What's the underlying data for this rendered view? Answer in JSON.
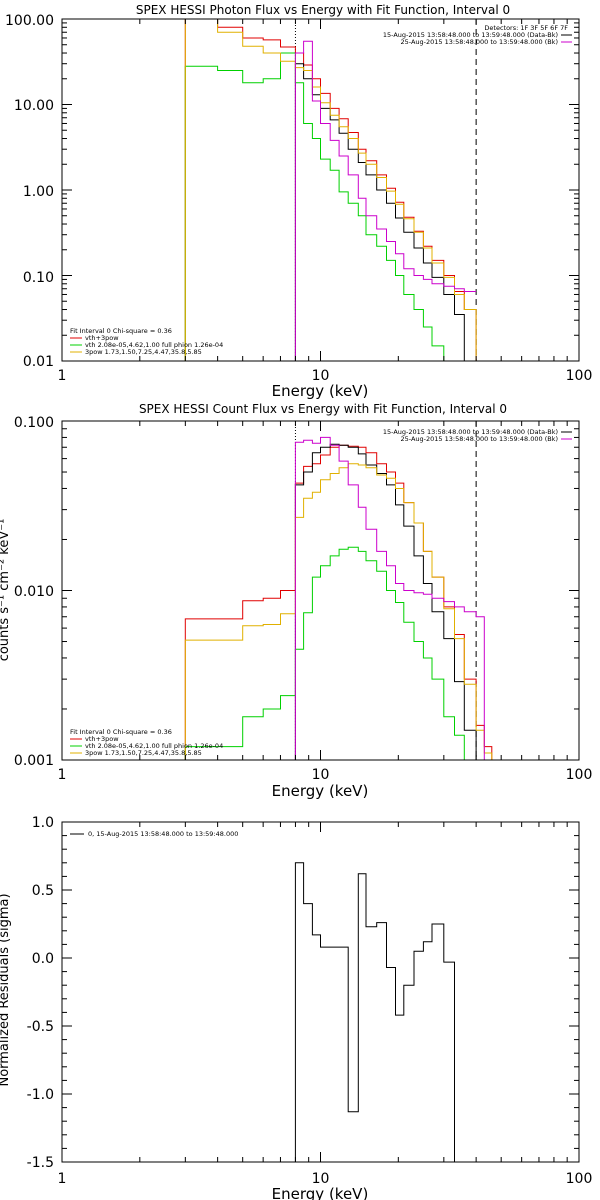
{
  "chart_data": [
    {
      "type": "line",
      "title": "SPEX HESSI Photon Flux vs Energy with Fit Function, Interval 0",
      "xlabel": "Energy (keV)",
      "ylabel": "",
      "xscale": "log",
      "yscale": "log",
      "xlim": [
        1,
        100
      ],
      "ylim": [
        0.01,
        100
      ],
      "xticks": [
        "1",
        "10",
        "100"
      ],
      "yticks": [
        "0.01",
        "0.10",
        "1.00",
        "10.00",
        "100.00"
      ],
      "edges": [
        3,
        4,
        5,
        6,
        7,
        8,
        8.6,
        9.3,
        10,
        10.9,
        11.8,
        12.8,
        14,
        15,
        16.5,
        18,
        19.5,
        21,
        23,
        25,
        27,
        30,
        33,
        36,
        40
      ],
      "vlines": [
        8.0,
        40.0
      ],
      "detectors_label": "Detectors: 1F 3F 5F 6F 7F",
      "right_legend": [
        {
          "name": "15-Aug-2015 13:58:48.000 to 13:59:48.000 (Data-Bk)",
          "color": "#000000"
        },
        {
          "name": "25-Aug-2015 13:58:48.000 to 13:59:48.000 (Bk)",
          "color": "#cc00cc"
        }
      ],
      "left_legend_header": "Fit Interval 0   Chi-square = 0.36",
      "left_legend": [
        {
          "name": "vth+3pow",
          "color": "#e00000"
        },
        {
          "name": "vth 2.08e-05,4.62,1.00  full phion 1.26e-04",
          "color": "#00d000"
        },
        {
          "name": "3pow 1.73,1.50,7.25,4.47,35.8,5.85",
          "color": "#e0b000"
        }
      ],
      "series": [
        {
          "name": "vth+3pow",
          "color": "#e00000",
          "x0": 3,
          "values": [
            100,
            80,
            60,
            57,
            47,
            40,
            29,
            20,
            13.5,
            9.0,
            6.8,
            4.7,
            3.0,
            2.2,
            1.5,
            1.05,
            0.72,
            0.48,
            0.33,
            0.22,
            0.15,
            0.1,
            0.065,
            0.04
          ]
        },
        {
          "name": "data",
          "color": "#000000",
          "x0": 8,
          "values": [
            30,
            20,
            13,
            9.0,
            6.6,
            4.6,
            3.0,
            2.1,
            1.5,
            1.0,
            0.7,
            0.47,
            0.32,
            0.21,
            0.14,
            0.095,
            0.06,
            0.035
          ]
        },
        {
          "name": "vth",
          "color": "#00d000",
          "x0": 3,
          "values": [
            28,
            25,
            18,
            20,
            40,
            18,
            6.0,
            4.0,
            2.3,
            1.7,
            0.95,
            0.7,
            0.5,
            0.3,
            0.22,
            0.15,
            0.1,
            0.06,
            0.04,
            0.025,
            0.015,
            0.009
          ]
        },
        {
          "name": "3pow",
          "color": "#e0b000",
          "x0": 3,
          "values": [
            100,
            70,
            48,
            40,
            32,
            27,
            25,
            16,
            10.5,
            7.5,
            5.5,
            4.0,
            2.7,
            2.0,
            1.4,
            0.97,
            0.68,
            0.46,
            0.32,
            0.21,
            0.14,
            0.095,
            0.06,
            0.04
          ]
        },
        {
          "name": "background",
          "color": "#cc00cc",
          "x0": 8,
          "values": [
            40,
            55,
            11,
            6.0,
            3.8,
            2.5,
            1.5,
            0.8,
            0.5,
            0.35,
            0.25,
            0.18,
            0.12,
            0.1,
            0.09,
            0.08,
            0.075,
            0.07,
            0.065,
            0.055,
            0.05,
            0.05
          ]
        }
      ]
    },
    {
      "type": "line",
      "title": "SPEX HESSI Count Flux vs Energy with Fit Function, Interval 0",
      "xlabel": "Energy (keV)",
      "ylabel": "counts s⁻¹ cm⁻² keV⁻¹",
      "xscale": "log",
      "yscale": "log",
      "xlim": [
        1,
        100
      ],
      "ylim": [
        0.001,
        0.1
      ],
      "xticks": [
        "1",
        "10",
        "100"
      ],
      "yticks": [
        "0.001",
        "0.010",
        "0.100"
      ],
      "edges": [
        3,
        4,
        5,
        6,
        7,
        8,
        8.6,
        9.3,
        10,
        10.9,
        11.8,
        12.8,
        14,
        15,
        16.5,
        18,
        19.5,
        21,
        23,
        25,
        27,
        30,
        33,
        36,
        40,
        43,
        46
      ],
      "vlines": [
        8.0,
        40.0
      ],
      "right_legend": [
        {
          "name": "15-Aug-2015 13:58:48.000 to 13:59:48.000 (Data-Bk)",
          "color": "#000000"
        },
        {
          "name": "25-Aug-2015 13:58:48.000 to 13:59:48.000 (Bk)",
          "color": "#cc00cc"
        }
      ],
      "left_legend_header": "Fit Interval 0   Chi-square = 0.36",
      "left_legend": [
        {
          "name": "vth+3pow",
          "color": "#e00000"
        },
        {
          "name": "vth 2.08e-05,4.62,1.00  full phion 1.26e-04",
          "color": "#00d000"
        },
        {
          "name": "3pow 1.73,1.50,7.25,4.47,35.8,5.85",
          "color": "#e0b000"
        }
      ],
      "series": [
        {
          "name": "vth+3pow",
          "color": "#e00000",
          "x0": 3,
          "values": [
            0.0068,
            0.0068,
            0.0087,
            0.009,
            0.01,
            0.043,
            0.054,
            0.056,
            0.063,
            0.07,
            0.072,
            0.071,
            0.07,
            0.065,
            0.056,
            0.05,
            0.043,
            0.033,
            0.025,
            0.017,
            0.012,
            0.008,
            0.0055,
            0.003,
            0.0016,
            0.0012
          ]
        },
        {
          "name": "data",
          "color": "#000000",
          "x0": 8,
          "values": [
            0.042,
            0.05,
            0.065,
            0.07,
            0.073,
            0.072,
            0.07,
            0.064,
            0.055,
            0.049,
            0.042,
            0.032,
            0.024,
            0.016,
            0.011,
            0.0075,
            0.0052,
            0.0029,
            0.0015
          ]
        },
        {
          "name": "vth",
          "color": "#00d000",
          "x0": 3,
          "values": [
            0.0012,
            0.0012,
            0.0018,
            0.002,
            0.0024,
            0.0045,
            0.0074,
            0.012,
            0.014,
            0.016,
            0.0175,
            0.018,
            0.017,
            0.015,
            0.013,
            0.01,
            0.0085,
            0.0065,
            0.005,
            0.004,
            0.003,
            0.0018,
            0.0014
          ]
        },
        {
          "name": "3pow",
          "color": "#e0b000",
          "x0": 3,
          "values": [
            0.0051,
            0.0051,
            0.0062,
            0.0063,
            0.0073,
            0.027,
            0.035,
            0.038,
            0.045,
            0.049,
            0.053,
            0.056,
            0.055,
            0.053,
            0.048,
            0.046,
            0.04,
            0.033,
            0.025,
            0.017,
            0.012,
            0.0078,
            0.0052,
            0.0028,
            0.0015,
            0.0011
          ]
        },
        {
          "name": "background",
          "color": "#cc00cc",
          "x0": 8,
          "values": [
            0.075,
            0.077,
            0.074,
            0.08,
            0.072,
            0.058,
            0.042,
            0.031,
            0.023,
            0.017,
            0.014,
            0.011,
            0.01,
            0.0097,
            0.0095,
            0.009,
            0.0086,
            0.008,
            0.0075,
            0.007
          ]
        }
      ]
    },
    {
      "type": "line",
      "title": "",
      "xlabel": "Energy (keV)",
      "ylabel": "Normalized Residuals (sigma)",
      "xscale": "log",
      "yscale": "linear",
      "xlim": [
        1,
        100
      ],
      "ylim": [
        -1.5,
        1.0
      ],
      "xticks": [
        "1",
        "10",
        "100"
      ],
      "yticks": [
        "1.0",
        "0.5",
        "0.0",
        "-0.5",
        "-1.0",
        "-1.5"
      ],
      "edges": [
        8,
        8.6,
        9.3,
        10,
        10.9,
        11.8,
        12.8,
        14,
        15,
        16.5,
        18,
        19.5,
        21,
        23,
        25,
        27,
        30,
        33,
        36,
        40
      ],
      "legend": [
        {
          "name": "0, 15-Aug-2015 13:58:48.000 to 13:59:48.000",
          "color": "#000000"
        }
      ],
      "series": [
        {
          "name": "residuals",
          "color": "#000000",
          "x0": 8,
          "values": [
            0.7,
            0.4,
            0.17,
            0.08,
            0.08,
            0.08,
            -1.13,
            0.62,
            0.23,
            0.26,
            -0.07,
            -0.42,
            -0.2,
            0.05,
            0.12,
            0.25,
            -0.03
          ]
        }
      ]
    }
  ]
}
